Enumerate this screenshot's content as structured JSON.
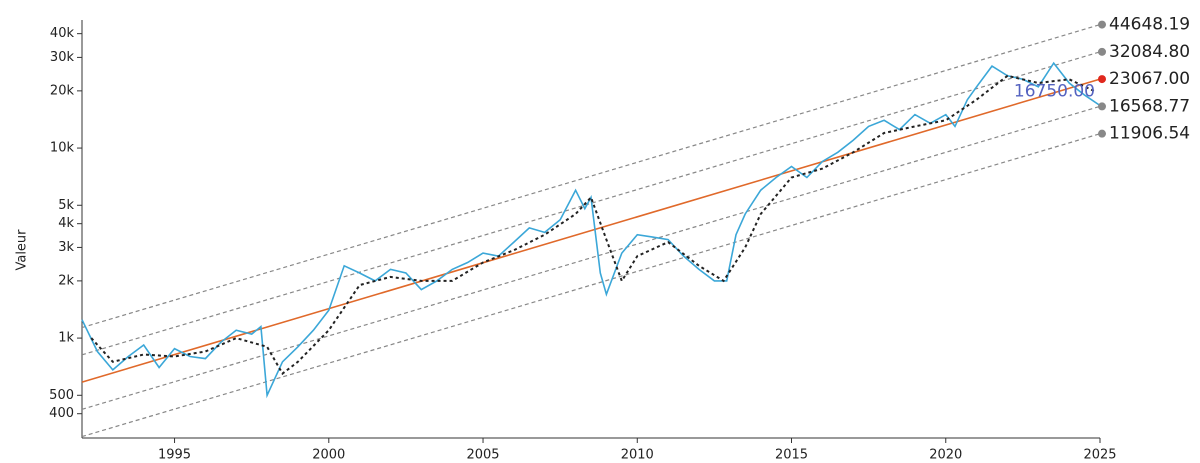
{
  "chart_data": {
    "type": "line",
    "y_label": "Valeur",
    "log_scale": true,
    "xlim": [
      1992,
      2025
    ],
    "xticks": [
      1995,
      2000,
      2005,
      2010,
      2015,
      2020,
      2025
    ],
    "ylim": [
      298,
      47200
    ],
    "yticks": [
      {
        "value": 400,
        "label": "400"
      },
      {
        "value": 500,
        "label": "500"
      },
      {
        "value": 1000,
        "label": "1k"
      },
      {
        "value": 2000,
        "label": "2k"
      },
      {
        "value": 3000,
        "label": "3k"
      },
      {
        "value": 4000,
        "label": "4k"
      },
      {
        "value": 5000,
        "label": "5k"
      },
      {
        "value": 10000,
        "label": "10k"
      },
      {
        "value": 20000,
        "label": "20k"
      },
      {
        "value": 30000,
        "label": "30k"
      },
      {
        "value": 40000,
        "label": "40k"
      }
    ],
    "series": [
      {
        "color": "#3ba7d8",
        "dashed": false,
        "x": [
          1992.0,
          1992.5,
          1993.0,
          1993.5,
          1994.0,
          1994.5,
          1995.0,
          1995.5,
          1996.0,
          1996.5,
          1997.0,
          1997.5,
          1997.8,
          1998.0,
          1998.5,
          1999.0,
          1999.5,
          2000.0,
          2000.5,
          2001.0,
          2001.5,
          2002.0,
          2002.5,
          2003.0,
          2003.5,
          2004.0,
          2004.5,
          2005.0,
          2005.5,
          2006.0,
          2006.5,
          2007.0,
          2007.5,
          2008.0,
          2008.3,
          2008.5,
          2008.8,
          2009.0,
          2009.3,
          2009.5,
          2010.0,
          2010.5,
          2011.0,
          2011.5,
          2012.0,
          2012.5,
          2012.9,
          2013.2,
          2013.5,
          2014.0,
          2014.5,
          2015.0,
          2015.5,
          2016.0,
          2016.5,
          2017.0,
          2017.5,
          2018.0,
          2018.5,
          2019.0,
          2019.5,
          2020.0,
          2020.3,
          2020.7,
          2021.0,
          2021.5,
          2022.0,
          2022.5,
          2023.0,
          2023.5,
          2024.0,
          2024.5,
          2025.0
        ],
        "values": [
          1250,
          850,
          680,
          800,
          920,
          700,
          880,
          800,
          780,
          950,
          1100,
          1050,
          1150,
          500,
          750,
          900,
          1100,
          1400,
          2400,
          2200,
          2000,
          2300,
          2200,
          1800,
          2000,
          2300,
          2500,
          2800,
          2700,
          3200,
          3800,
          3600,
          4200,
          6000,
          4800,
          5500,
          2200,
          1700,
          2300,
          2800,
          3500,
          3400,
          3300,
          2700,
          2300,
          2000,
          2000,
          3500,
          4500,
          6000,
          7000,
          8000,
          7000,
          8500,
          9500,
          11000,
          13000,
          14000,
          12500,
          15000,
          13500,
          15000,
          13000,
          18000,
          21000,
          27000,
          24000,
          23000,
          21000,
          28000,
          22000,
          19000,
          16750
        ]
      },
      {
        "color": "#222222",
        "dashed": true,
        "x": [
          1992.3,
          1993.0,
          1994.0,
          1995.0,
          1996.0,
          1997.0,
          1998.0,
          1998.5,
          1999.0,
          2000.0,
          2001.0,
          2002.0,
          2003.0,
          2004.0,
          2005.0,
          2006.0,
          2007.0,
          2008.0,
          2008.5,
          2009.0,
          2009.5,
          2010.0,
          2011.0,
          2012.0,
          2012.8,
          2013.5,
          2014.0,
          2015.0,
          2016.0,
          2017.0,
          2018.0,
          2019.0,
          2020.0,
          2021.0,
          2022.0,
          2023.0,
          2024.0,
          2024.8
        ],
        "values": [
          1000,
          750,
          820,
          800,
          850,
          1000,
          900,
          650,
          750,
          1100,
          1900,
          2100,
          2000,
          2000,
          2500,
          2900,
          3500,
          4500,
          5500,
          3300,
          2000,
          2700,
          3200,
          2400,
          2000,
          3000,
          4500,
          7000,
          7800,
          9500,
          12000,
          13000,
          14000,
          18000,
          24000,
          22000,
          23000,
          20000
        ]
      }
    ],
    "channels": [
      {
        "x": [
          1992,
          2025
        ],
        "values": [
          1136,
          44648.19
        ],
        "label": "44648.19",
        "color": "#888888",
        "dot": "#888888"
      },
      {
        "x": [
          1992,
          2025
        ],
        "values": [
          817,
          32084.8
        ],
        "label": "32084.80",
        "color": "#888888",
        "dot": "#888888"
      },
      {
        "x": [
          1992,
          2025
        ],
        "values": [
          587,
          23067.0
        ],
        "label": "23067.00",
        "color": "#e0692a",
        "dot": "#e0281e"
      },
      {
        "x": [
          1992,
          2025
        ],
        "values": [
          422,
          16568.77
        ],
        "label": "16568.77",
        "color": "#888888",
        "dot": "#888888"
      },
      {
        "x": [
          1992,
          2025
        ],
        "values": [
          303,
          11906.54
        ],
        "label": "11906.54",
        "color": "#888888",
        "dot": "#888888"
      }
    ],
    "current": {
      "value": 16750,
      "label": "16750.00",
      "color": "#5563c0"
    }
  }
}
